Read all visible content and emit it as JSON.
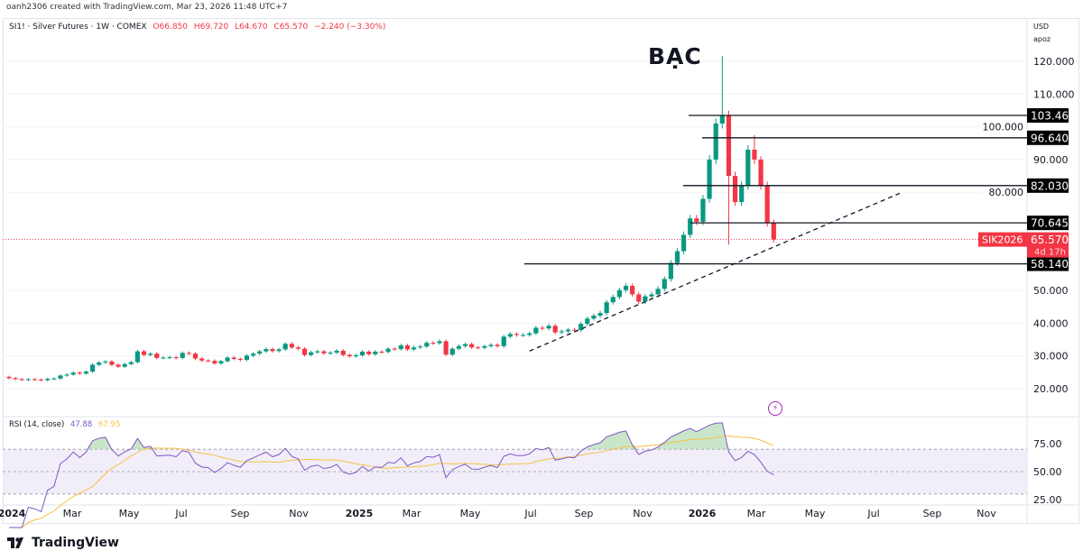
{
  "credit": "oanh2306 created with TradingView.com, Mar 23, 2026 11:48 UTC+7",
  "legend": {
    "symbol": "SI1! · Silver Futures · 1W · COMEX",
    "open": "O66.850",
    "high": "H69.720",
    "low": "L64.670",
    "close": "C65.570",
    "change": "−2.240 (−3.30%)"
  },
  "rsi_legend": {
    "label": "RSI (14, close)",
    "rsi": "47.88",
    "ma": "67.95"
  },
  "axis_unit": {
    "currency": "USD",
    "scale": "apoz"
  },
  "annotation_title": "BẠC",
  "current_price": {
    "symbol": "SIK2026",
    "price": "65.570",
    "countdown": "4d 17h"
  },
  "brand": "TradingView",
  "colors": {
    "up": "#089981",
    "down": "#f23645",
    "rsi": "#7e57c2",
    "rsi_ma": "#f5c342",
    "band": "#ede7f6"
  },
  "chart_data": {
    "type": "candlestick",
    "price_ticks": [
      120,
      110,
      100,
      90,
      80,
      50,
      40,
      30,
      20
    ],
    "price_tick_labels": [
      "120.000",
      "110.000",
      "100.000",
      "90.000",
      "80.000",
      "50.000",
      "40.000",
      "30.000",
      "20.000"
    ],
    "rsi_ticks": [
      75,
      50,
      25
    ],
    "rsi_tick_labels": [
      "75.00",
      "50.00",
      "25.00"
    ],
    "time_labels": [
      "2024",
      "Mar",
      "May",
      "Jul",
      "Sep",
      "Nov",
      "2025",
      "Mar",
      "May",
      "Jul",
      "Sep",
      "Nov",
      "2026",
      "Mar",
      "May",
      "Jul",
      "Sep",
      "Nov"
    ],
    "closes": [
      23.2,
      22.9,
      22.7,
      22.9,
      22.8,
      22.6,
      23.0,
      23.1,
      24.0,
      24.3,
      24.9,
      24.6,
      25.2,
      27.3,
      28.0,
      28.3,
      27.3,
      26.7,
      27.5,
      28.1,
      31.4,
      30.3,
      30.7,
      29.4,
      29.5,
      29.6,
      29.4,
      30.9,
      30.7,
      29.2,
      28.6,
      28.5,
      27.7,
      28.4,
      29.5,
      29.1,
      28.8,
      30.1,
      30.7,
      31.4,
      32.1,
      31.5,
      32.0,
      33.7,
      32.6,
      32.2,
      30.3,
      31.1,
      31.4,
      30.8,
      31.0,
      31.6,
      30.3,
      29.9,
      30.2,
      31.3,
      30.5,
      31.3,
      31.2,
      32.2,
      32.1,
      33.2,
      32.0,
      32.6,
      32.9,
      34.0,
      33.9,
      34.5,
      30.4,
      32.2,
      33.0,
      33.6,
      32.6,
      32.5,
      33.0,
      33.4,
      33.0,
      35.9,
      36.7,
      36.4,
      36.4,
      36.9,
      38.6,
      38.4,
      39.2,
      37.2,
      37.5,
      38.0,
      37.9,
      39.8,
      41.4,
      42.3,
      43.1,
      46.4,
      48.0,
      50.1,
      51.4,
      48.8,
      46.6,
      48.2,
      48.8,
      50.5,
      53.5,
      58.4,
      62.0,
      67.0,
      72.0,
      71.0,
      78.0,
      90.0,
      101.0,
      103.4,
      85.0,
      77.0,
      82.0,
      93.0,
      90.0,
      82.0,
      70.6,
      65.57
    ],
    "first_open": 23.6,
    "wick_overrides": {
      "111": {
        "high": 121.6
      },
      "112": {
        "low": 64.0
      },
      "116": {
        "high": 97.5
      },
      "117": {
        "high": 91.0
      }
    },
    "levels": [
      {
        "value": 103.465,
        "label": "103.465"
      },
      {
        "value": 96.64,
        "label": "96.640"
      },
      {
        "value": 82.03,
        "label": "82.030"
      },
      {
        "value": 70.645,
        "label": "70.645"
      },
      {
        "value": 58.14,
        "label": "58.140"
      }
    ],
    "trendline": {
      "from": {
        "week": 81,
        "price": 31.5
      },
      "to": {
        "week": 139,
        "price": 80.0
      }
    },
    "rsi_period": 14,
    "rsi_bands": [
      70,
      30
    ]
  }
}
